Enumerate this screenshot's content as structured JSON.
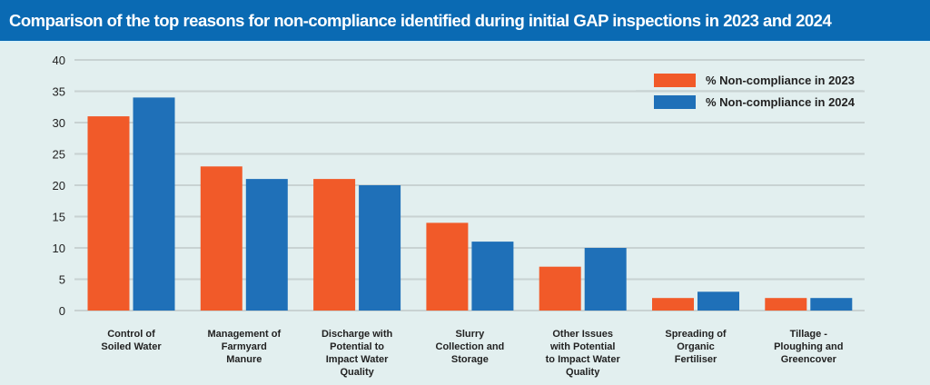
{
  "header": {
    "title": "Comparison of the top reasons for non-compliance identified during initial GAP inspections in 2023 and 2024"
  },
  "colors": {
    "series_2023": "#f15a29",
    "series_2024": "#1f70b8",
    "title_bar": "#0a6ab3",
    "grid": "#c8d2d2"
  },
  "chart_data": {
    "type": "bar",
    "title": "Comparison of the top reasons for non-compliance identified during initial GAP inspections in 2023 and 2024",
    "xlabel": "",
    "ylabel": "",
    "ylim": [
      0,
      40
    ],
    "yticks": [
      0,
      5,
      10,
      15,
      20,
      25,
      30,
      35,
      40
    ],
    "grid": true,
    "legend_position": "top-right",
    "categories": [
      "Control of Soiled Water",
      "Management of Farmyard Manure",
      "Discharge with Potential to Impact Water Quality",
      "Slurry Collection and Storage",
      "Other Issues with Potential to Impact Water Quality",
      "Spreading of Organic Fertiliser",
      "Tillage - Ploughing and Greencover"
    ],
    "category_lines": [
      [
        "Control of",
        "Soiled Water"
      ],
      [
        "Management of",
        "Farmyard",
        "Manure"
      ],
      [
        "Discharge with",
        "Potential to",
        "Impact Water",
        "Quality"
      ],
      [
        "Slurry",
        "Collection and",
        "Storage"
      ],
      [
        "Other Issues",
        "with Potential",
        "to Impact Water",
        "Quality"
      ],
      [
        "Spreading of",
        "Organic",
        "Fertiliser"
      ],
      [
        "Tillage -",
        "Ploughing and",
        "Greencover"
      ]
    ],
    "series": [
      {
        "name": "% Non-compliance in 2023",
        "values": [
          31,
          23,
          21,
          14,
          7,
          2,
          2
        ]
      },
      {
        "name": "% Non-compliance in 2024",
        "values": [
          34,
          21,
          20,
          11,
          10,
          3,
          2
        ]
      }
    ]
  }
}
